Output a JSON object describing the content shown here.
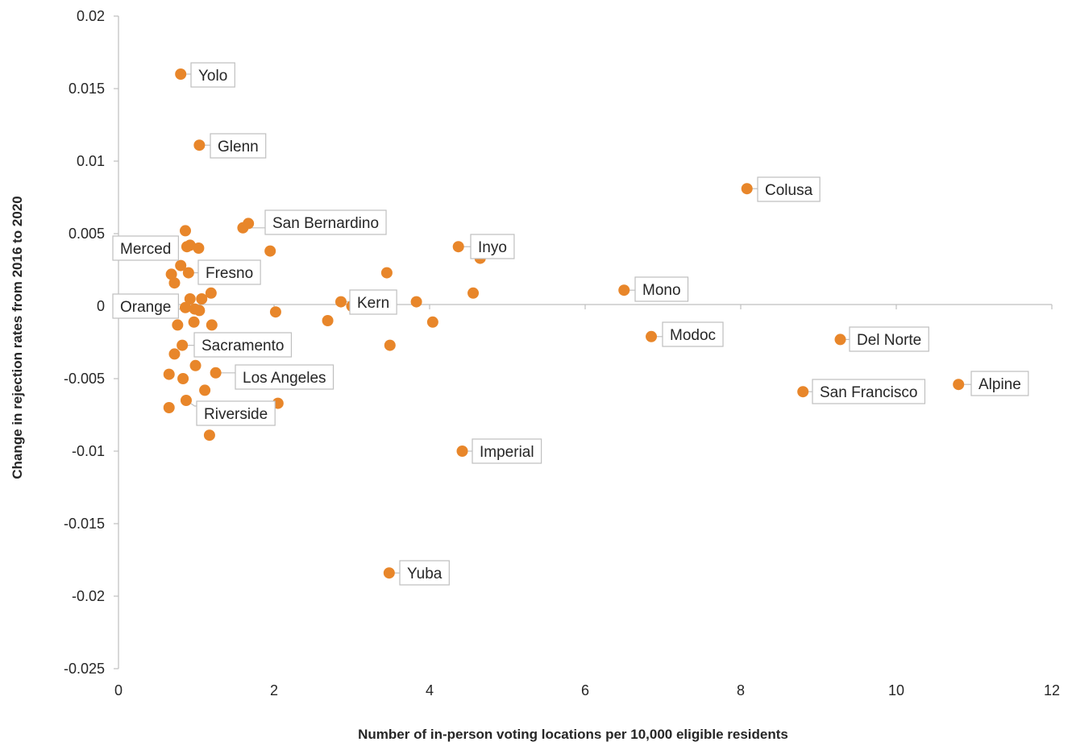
{
  "chart_data": {
    "type": "scatter",
    "xlabel": "Number of in-person voting locations per 10,000 eligible residents",
    "ylabel": "Change in rejection rates from 2016 to 2020",
    "xlim": [
      0,
      12
    ],
    "ylim": [
      -0.025,
      0.02
    ],
    "xticks": [
      0,
      2,
      4,
      6,
      8,
      10,
      12
    ],
    "xtick_labels": [
      "0",
      "2",
      "4",
      "6",
      "8",
      "10",
      "12"
    ],
    "yticks": [
      0.02,
      0.015,
      0.01,
      0.005,
      0,
      -0.005,
      -0.01,
      -0.015,
      -0.02,
      -0.025
    ],
    "ytick_labels": [
      "0.02",
      "0.015",
      "0.01",
      "0.005",
      "0",
      "-0.005",
      "-0.01",
      "-0.015",
      "-0.02",
      "-0.025"
    ],
    "grid": false,
    "marker_color": "#E8862A",
    "points": [
      {
        "x": 0.8,
        "y": 0.016,
        "label": "Yolo"
      },
      {
        "x": 1.04,
        "y": 0.0111,
        "label": "Glenn"
      },
      {
        "x": 1.6,
        "y": 0.0054,
        "label": "San Bernardino"
      },
      {
        "x": 0.8,
        "y": 0.0028,
        "label": "Merced"
      },
      {
        "x": 0.9,
        "y": 0.0023,
        "label": "Fresno"
      },
      {
        "x": 0.98,
        "y": -0.0002,
        "label": "Orange"
      },
      {
        "x": 0.82,
        "y": -0.0027,
        "label": "Sacramento"
      },
      {
        "x": 1.25,
        "y": -0.0046,
        "label": "Los Angeles"
      },
      {
        "x": 0.87,
        "y": -0.0065,
        "label": "Riverside"
      },
      {
        "x": 2.86,
        "y": 0.0003,
        "label": "Kern"
      },
      {
        "x": 4.37,
        "y": 0.0041,
        "label": "Inyo"
      },
      {
        "x": 4.42,
        "y": -0.01,
        "label": "Imperial"
      },
      {
        "x": 3.48,
        "y": -0.0184,
        "label": "Yuba"
      },
      {
        "x": 8.08,
        "y": 0.0081,
        "label": "Colusa"
      },
      {
        "x": 6.5,
        "y": 0.0011,
        "label": "Mono"
      },
      {
        "x": 6.85,
        "y": -0.0021,
        "label": "Modoc"
      },
      {
        "x": 9.28,
        "y": -0.0023,
        "label": "Del Norte"
      },
      {
        "x": 8.8,
        "y": -0.0059,
        "label": "San Francisco"
      },
      {
        "x": 10.8,
        "y": -0.0054,
        "label": "Alpine"
      },
      {
        "x": 0.86,
        "y": 0.0052
      },
      {
        "x": 0.88,
        "y": 0.0041
      },
      {
        "x": 0.92,
        "y": 0.0042
      },
      {
        "x": 1.03,
        "y": 0.004
      },
      {
        "x": 1.67,
        "y": 0.0057
      },
      {
        "x": 1.95,
        "y": 0.0038
      },
      {
        "x": 0.68,
        "y": 0.0022
      },
      {
        "x": 0.72,
        "y": 0.0016
      },
      {
        "x": 0.92,
        "y": 0.0005
      },
      {
        "x": 1.07,
        "y": 0.0005
      },
      {
        "x": 1.19,
        "y": 0.0009
      },
      {
        "x": 0.86,
        "y": -0.0001
      },
      {
        "x": 1.04,
        "y": -0.0003
      },
      {
        "x": 0.76,
        "y": -0.0013
      },
      {
        "x": 0.97,
        "y": -0.0011
      },
      {
        "x": 1.2,
        "y": -0.0013
      },
      {
        "x": 2.02,
        "y": -0.0004
      },
      {
        "x": 2.69,
        "y": -0.001
      },
      {
        "x": 3.0,
        "y": 0.0
      },
      {
        "x": 3.45,
        "y": 0.0023
      },
      {
        "x": 3.83,
        "y": 0.0003
      },
      {
        "x": 4.04,
        "y": -0.0011
      },
      {
        "x": 4.56,
        "y": 0.0009
      },
      {
        "x": 4.65,
        "y": 0.0033
      },
      {
        "x": 3.49,
        "y": -0.0027
      },
      {
        "x": 0.72,
        "y": -0.0033
      },
      {
        "x": 0.65,
        "y": -0.0047
      },
      {
        "x": 0.83,
        "y": -0.005
      },
      {
        "x": 0.99,
        "y": -0.0041
      },
      {
        "x": 1.11,
        "y": -0.0058
      },
      {
        "x": 0.65,
        "y": -0.007
      },
      {
        "x": 1.17,
        "y": -0.0089
      },
      {
        "x": 2.05,
        "y": -0.0067
      }
    ]
  }
}
